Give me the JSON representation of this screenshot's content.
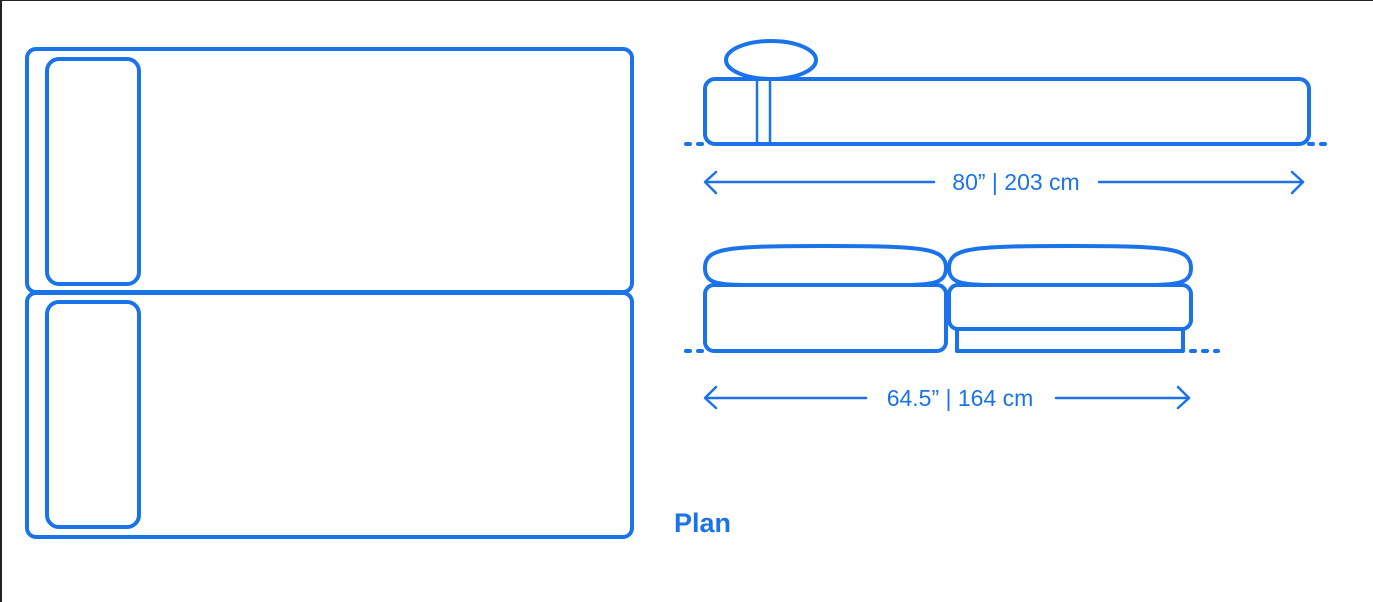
{
  "colors": {
    "line": "#1a73e8",
    "background": "#ffffff"
  },
  "labels": {
    "plan": "Plan",
    "length_dimension": "80” | 203 cm",
    "width_dimension": "64.5” | 164 cm"
  }
}
